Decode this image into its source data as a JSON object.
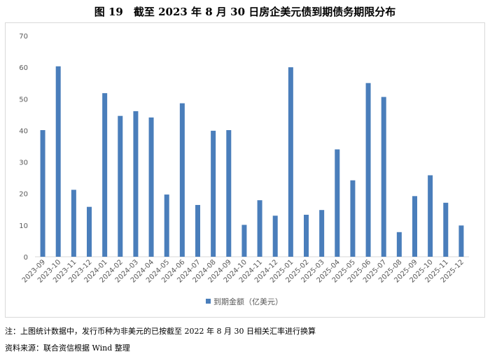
{
  "page": {
    "title": "图 19　截至 2023 年 8 月 30 日房企美元债到期债务期限分布",
    "note": "注：上图统计数据中，发行币种为非美元的已按截至 2022 年 8 月 30 日相关汇率进行换算",
    "source": "资料来源：联合资信根据 Wind 整理"
  },
  "chart_data": {
    "type": "bar",
    "categories": [
      "2023-09",
      "2023-10",
      "2023-11",
      "2023-12",
      "2024-01",
      "2024-02",
      "2024-03",
      "2024-04",
      "2024-05",
      "2024-06",
      "2024-07",
      "2024-08",
      "2024-09",
      "2024-10",
      "2024-11",
      "2024-12",
      "2025-01",
      "2025-02",
      "2025-03",
      "2025-04",
      "2025-05",
      "2025-06",
      "2025-07",
      "2025-08",
      "2025-09",
      "2025-10",
      "2025-11",
      "2025-12"
    ],
    "series": [
      {
        "name": "到期金额（亿美元）",
        "values": [
          40.1,
          60.3,
          21.2,
          15.8,
          51.8,
          44.6,
          46.1,
          44.1,
          19.7,
          48.6,
          16.4,
          39.9,
          40.1,
          10.1,
          17.9,
          13.0,
          60.0,
          13.3,
          14.8,
          34.0,
          24.2,
          55.0,
          50.6,
          7.8,
          19.2,
          25.8,
          17.1,
          9.9
        ]
      }
    ],
    "y_ticks": [
      "0",
      "10",
      "20",
      "30",
      "40",
      "50",
      "60",
      "70"
    ],
    "ylim": [
      0,
      70
    ],
    "bar_color": "#4a7ebb",
    "grid": false,
    "legend": "bottom"
  }
}
